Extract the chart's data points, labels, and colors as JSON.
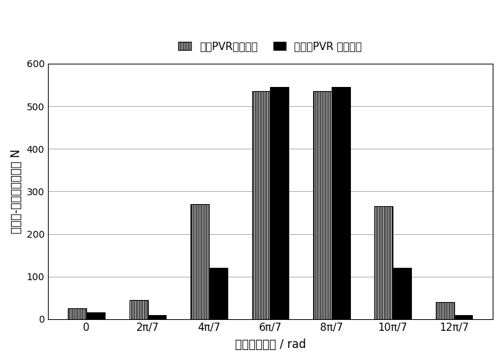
{
  "categories": [
    "0",
    "2π/7",
    "4π/7",
    "6π/7",
    "8π/7",
    "10π/7",
    "12π/7"
  ],
  "series1_label": "考虑PVR润滑状态",
  "series2_label": "不考虑PVR 润滑状态",
  "series1_values": [
    25,
    45,
    270,
    535,
    535,
    265,
    40
  ],
  "series2_values": [
    15,
    10,
    120,
    545,
    545,
    120,
    10
  ],
  "ylabel": "滨动体-内圈接触载荷／ N",
  "xlabel": "滨动体方位角 / rad",
  "ylim": [
    0,
    600
  ],
  "yticks": [
    0,
    100,
    200,
    300,
    400,
    500,
    600
  ],
  "bar_width": 0.3,
  "series1_color": "#ffffff",
  "series2_color": "#000000",
  "hatch1": "|||||||",
  "axis_fontsize": 12,
  "legend_fontsize": 11,
  "background_color": "#ffffff",
  "grid_color": "#aaaaaa"
}
